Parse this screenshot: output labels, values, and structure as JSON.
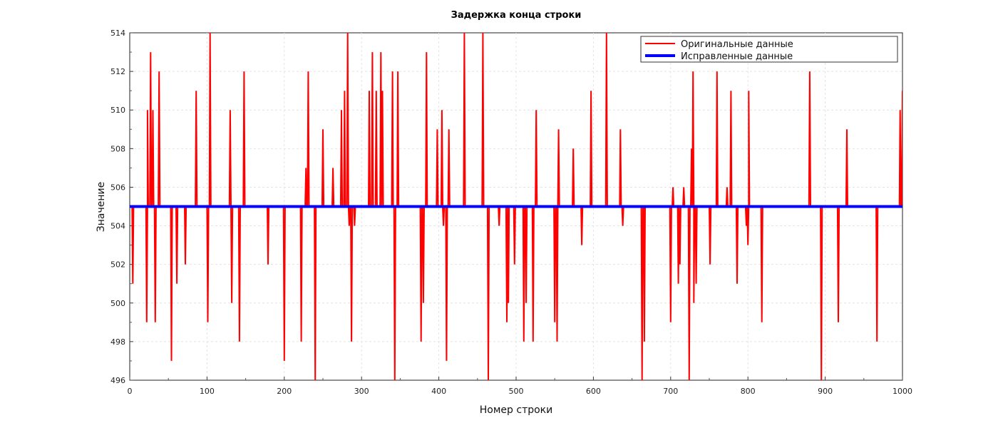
{
  "chart_data": {
    "type": "line",
    "title": "Задержка конца строки",
    "xlabel": "Номер строки",
    "ylabel": "Значение",
    "xlim": [
      0,
      1000
    ],
    "ylim": [
      496,
      514
    ],
    "x_ticks": [
      "0",
      "100",
      "200",
      "300",
      "400",
      "500",
      "600",
      "700",
      "800",
      "900",
      "1000"
    ],
    "y_ticks": [
      "496",
      "498",
      "500",
      "502",
      "504",
      "506",
      "508",
      "510",
      "512",
      "514"
    ],
    "grid": true,
    "legend_position": "top-right",
    "series": [
      {
        "name": "Оригинальные данные",
        "color": "#ff0000",
        "baseline": 505,
        "spikes": [
          [
            4,
            501
          ],
          [
            22,
            499
          ],
          [
            23,
            510
          ],
          [
            27,
            513
          ],
          [
            30,
            510
          ],
          [
            33,
            499
          ],
          [
            38,
            512
          ],
          [
            54,
            497
          ],
          [
            61,
            501
          ],
          [
            72,
            502
          ],
          [
            86,
            511
          ],
          [
            101,
            499
          ],
          [
            104,
            514
          ],
          [
            130,
            510
          ],
          [
            132,
            500
          ],
          [
            142,
            498
          ],
          [
            148,
            512
          ],
          [
            179,
            502
          ],
          [
            200,
            497
          ],
          [
            222,
            498
          ],
          [
            228,
            507
          ],
          [
            231,
            512
          ],
          [
            240,
            496
          ],
          [
            250,
            509
          ],
          [
            263,
            507
          ],
          [
            274,
            510
          ],
          [
            278,
            511
          ],
          [
            282,
            514
          ],
          [
            284,
            504
          ],
          [
            287,
            498
          ],
          [
            291,
            504
          ],
          [
            310,
            511
          ],
          [
            314,
            513
          ],
          [
            319,
            511
          ],
          [
            325,
            513
          ],
          [
            327,
            511
          ],
          [
            340,
            512
          ],
          [
            343,
            496
          ],
          [
            347,
            512
          ],
          [
            377,
            498
          ],
          [
            380,
            500
          ],
          [
            384,
            513
          ],
          [
            398,
            509
          ],
          [
            404,
            510
          ],
          [
            406,
            504
          ],
          [
            410,
            497
          ],
          [
            413,
            509
          ],
          [
            433,
            514
          ],
          [
            457,
            514
          ],
          [
            464,
            496
          ],
          [
            478,
            504
          ],
          [
            488,
            499
          ],
          [
            490,
            500
          ],
          [
            498,
            502
          ],
          [
            510,
            498
          ],
          [
            513,
            500
          ],
          [
            522,
            498
          ],
          [
            526,
            510
          ],
          [
            550,
            499
          ],
          [
            553,
            498
          ],
          [
            555,
            509
          ],
          [
            574,
            508
          ],
          [
            585,
            503
          ],
          [
            597,
            511
          ],
          [
            617,
            514
          ],
          [
            635,
            509
          ],
          [
            638,
            504
          ],
          [
            663,
            496
          ],
          [
            666,
            498
          ],
          [
            700,
            499
          ],
          [
            703,
            506
          ],
          [
            710,
            501
          ],
          [
            712,
            502
          ],
          [
            717,
            506
          ],
          [
            724,
            496
          ],
          [
            727,
            508
          ],
          [
            729,
            512
          ],
          [
            730,
            500
          ],
          [
            733,
            501
          ],
          [
            751,
            502
          ],
          [
            760,
            512
          ],
          [
            773,
            506
          ],
          [
            778,
            511
          ],
          [
            786,
            501
          ],
          [
            798,
            504
          ],
          [
            800,
            503
          ],
          [
            801,
            511
          ],
          [
            818,
            499
          ],
          [
            880,
            512
          ],
          [
            895,
            496
          ],
          [
            917,
            499
          ],
          [
            928,
            509
          ],
          [
            967,
            498
          ],
          [
            997,
            510
          ],
          [
            1000,
            511
          ]
        ]
      },
      {
        "name": "Исправленные данные",
        "color": "#0000ff",
        "constant": 505
      }
    ]
  }
}
